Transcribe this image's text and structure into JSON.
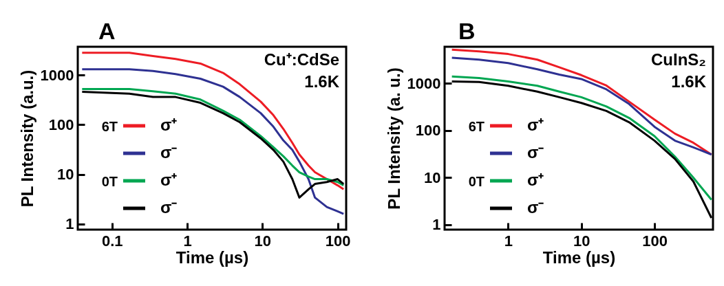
{
  "chart_data": [
    {
      "type": "line",
      "title": "A",
      "xlabel": "Time (µs)",
      "ylabel": "PL Intensity (a.u.)",
      "log": "xy",
      "grid": false,
      "legend": "left",
      "xlim": [
        0.035,
        130
      ],
      "xticks": [
        0.1,
        1,
        10,
        100
      ],
      "ylim": [
        0.77,
        3700
      ],
      "yticks": [
        1,
        10,
        100,
        1000
      ],
      "annotations": [
        "Cu⁺:CdSe",
        "1.6K"
      ],
      "x": [
        0.04,
        0.17,
        0.35,
        0.7,
        1.5,
        3,
        5,
        9.5,
        14,
        19,
        25,
        31,
        41,
        50,
        72,
        100,
        120
      ],
      "series": [
        {
          "name": "6T σ⁺",
          "color": "#ed1c24",
          "values": [
            2800,
            2800,
            2400,
            2100,
            1700,
            1100,
            650,
            290,
            155,
            82,
            43,
            25,
            15,
            11,
            8,
            6,
            5
          ]
        },
        {
          "name": "σ⁻",
          "color": "#2e3192",
          "values": [
            1300,
            1300,
            1200,
            1040,
            840,
            580,
            360,
            170,
            91,
            48,
            31,
            18,
            8,
            3.4,
            2.2,
            1.8,
            1.6
          ]
        },
        {
          "name": "0T σ⁺",
          "color": "#00a651",
          "values": [
            520,
            520,
            470,
            420,
            320,
            190,
            125,
            59,
            35,
            23,
            15,
            11,
            9,
            8,
            8,
            7,
            6
          ]
        },
        {
          "name": "σ⁻",
          "color": "#000000",
          "values": [
            460,
            420,
            360,
            360,
            275,
            170,
            112,
            53,
            31,
            18,
            8,
            3.4,
            5,
            6.4,
            7,
            8,
            6.4
          ]
        }
      ]
    },
    {
      "type": "line",
      "title": "B",
      "xlabel": "Time (µs)",
      "ylabel": "PL Intensity (a. u.)",
      "log": "xy",
      "grid": false,
      "legend": "left",
      "xlim": [
        0.135,
        630
      ],
      "xticks": [
        1,
        10,
        100
      ],
      "ylim": [
        0.79,
        6000
      ],
      "yticks": [
        1,
        10,
        100,
        1000
      ],
      "annotations": [
        "CuInS₂",
        "1.6K"
      ],
      "x": [
        0.17,
        0.4,
        1,
        2.5,
        5,
        10,
        22,
        45,
        100,
        190,
        340,
        600
      ],
      "series": [
        {
          "name": "6T σ⁺",
          "color": "#ed1c24",
          "values": [
            5200,
            4800,
            4200,
            3200,
            2200,
            1500,
            900,
            410,
            170,
            86,
            55,
            31
          ]
        },
        {
          "name": "σ⁻",
          "color": "#2e3192",
          "values": [
            3500,
            3200,
            2700,
            2000,
            1540,
            1240,
            750,
            365,
            120,
            61,
            44,
            31
          ]
        },
        {
          "name": "0T σ⁺",
          "color": "#00a651",
          "values": [
            1400,
            1300,
            1100,
            890,
            670,
            510,
            325,
            185,
            76,
            28,
            10,
            3.4
          ]
        },
        {
          "name": "σ⁻",
          "color": "#000000",
          "values": [
            1100,
            1070,
            890,
            670,
            510,
            385,
            260,
            150,
            61,
            25,
            8.3,
            1.4
          ]
        }
      ]
    }
  ]
}
